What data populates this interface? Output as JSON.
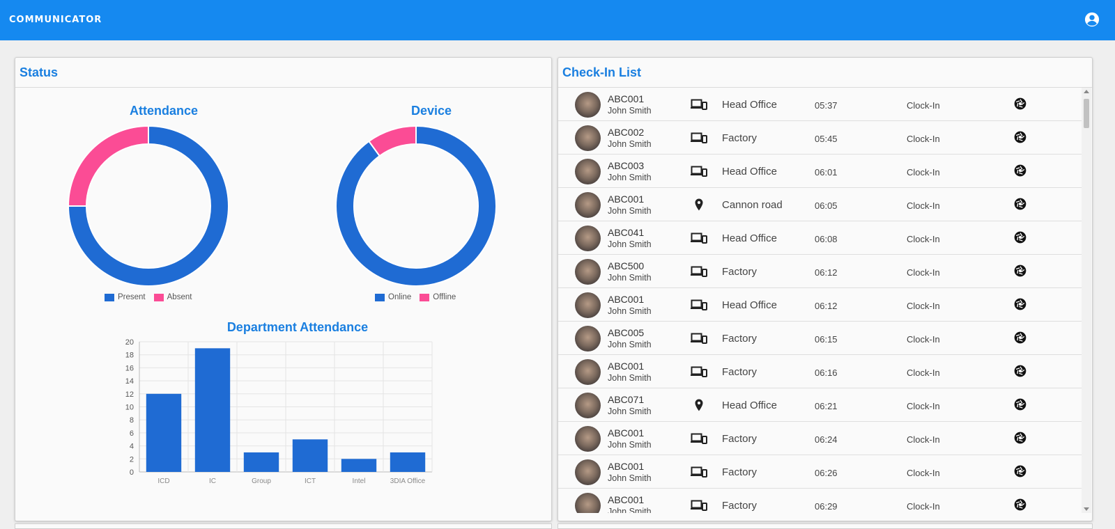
{
  "app": {
    "title": "communicator",
    "account_icon": "account-circle-icon"
  },
  "colors": {
    "appbar": "#1589f0",
    "accent": "#1a7fe0",
    "primary_series": "#1f6bd3",
    "secondary_series": "#fb4c95"
  },
  "status_card": {
    "title": "Status",
    "attendance": {
      "title": "Attendance",
      "legend": [
        {
          "label": "Present",
          "color": "#1f6bd3"
        },
        {
          "label": "Absent",
          "color": "#fb4c95"
        }
      ]
    },
    "device": {
      "title": "Device",
      "legend": [
        {
          "label": "Online",
          "color": "#1f6bd3"
        },
        {
          "label": "Offline",
          "color": "#fb4c95"
        }
      ]
    },
    "department": {
      "title": "Department Attendance"
    }
  },
  "chart_data": [
    {
      "type": "pie",
      "title": "Attendance",
      "labels": [
        "Present",
        "Absent"
      ],
      "values": [
        75,
        25
      ],
      "legend": "bottom"
    },
    {
      "type": "pie",
      "title": "Device",
      "labels": [
        "Online",
        "Offline"
      ],
      "values": [
        90,
        10
      ],
      "legend": "bottom"
    },
    {
      "type": "bar",
      "title": "Department Attendance",
      "categories": [
        "ICD",
        "IC",
        "Group",
        "ICT",
        "Intel",
        "3DIA Office"
      ],
      "values": [
        12,
        19,
        3,
        5,
        2,
        3
      ],
      "ylim": [
        0,
        20
      ],
      "yticks": [
        "0",
        "2",
        "4",
        "6",
        "8",
        "10",
        "12",
        "14",
        "16",
        "18",
        "20"
      ],
      "grid": true
    }
  ],
  "checkin_card": {
    "title": "Check-In List",
    "rows": [
      {
        "id": "ABC001",
        "name": "John Smith",
        "location": "Head Office",
        "location_icon": "laptop-phone-icon",
        "time": "05:37",
        "type": "Clock-In",
        "action_icon": "camera-shutter-icon"
      },
      {
        "id": "ABC002",
        "name": "John Smith",
        "location": "Factory",
        "location_icon": "laptop-phone-icon",
        "time": "05:45",
        "type": "Clock-In",
        "action_icon": "camera-shutter-icon"
      },
      {
        "id": "ABC003",
        "name": "John Smith",
        "location": "Head Office",
        "location_icon": "laptop-phone-icon",
        "time": "06:01",
        "type": "Clock-In",
        "action_icon": "camera-shutter-icon"
      },
      {
        "id": "ABC001",
        "name": "John Smith",
        "location": "Cannon road",
        "location_icon": "map-pin-icon",
        "time": "06:05",
        "type": "Clock-In",
        "action_icon": "camera-shutter-icon"
      },
      {
        "id": "ABC041",
        "name": "John Smith",
        "location": "Head Office",
        "location_icon": "laptop-phone-icon",
        "time": "06:08",
        "type": "Clock-In",
        "action_icon": "camera-shutter-icon"
      },
      {
        "id": "ABC500",
        "name": "John Smith",
        "location": "Factory",
        "location_icon": "laptop-phone-icon",
        "time": "06:12",
        "type": "Clock-In",
        "action_icon": "camera-shutter-icon"
      },
      {
        "id": "ABC001",
        "name": "John Smith",
        "location": "Head Office",
        "location_icon": "laptop-phone-icon",
        "time": "06:12",
        "type": "Clock-In",
        "action_icon": "camera-shutter-icon"
      },
      {
        "id": "ABC005",
        "name": "John Smith",
        "location": "Factory",
        "location_icon": "laptop-phone-icon",
        "time": "06:15",
        "type": "Clock-In",
        "action_icon": "camera-shutter-icon"
      },
      {
        "id": "ABC001",
        "name": "John Smith",
        "location": "Factory",
        "location_icon": "laptop-phone-icon",
        "time": "06:16",
        "type": "Clock-In",
        "action_icon": "camera-shutter-icon"
      },
      {
        "id": "ABC071",
        "name": "John Smith",
        "location": "Head Office",
        "location_icon": "map-pin-icon",
        "time": "06:21",
        "type": "Clock-In",
        "action_icon": "camera-shutter-icon"
      },
      {
        "id": "ABC001",
        "name": "John Smith",
        "location": "Factory",
        "location_icon": "laptop-phone-icon",
        "time": "06:24",
        "type": "Clock-In",
        "action_icon": "camera-shutter-icon"
      },
      {
        "id": "ABC001",
        "name": "John Smith",
        "location": "Factory",
        "location_icon": "laptop-phone-icon",
        "time": "06:26",
        "type": "Clock-In",
        "action_icon": "camera-shutter-icon"
      },
      {
        "id": "ABC001",
        "name": "John Smith",
        "location": "Factory",
        "location_icon": "laptop-phone-icon",
        "time": "06:29",
        "type": "Clock-In",
        "action_icon": "camera-shutter-icon"
      }
    ]
  }
}
